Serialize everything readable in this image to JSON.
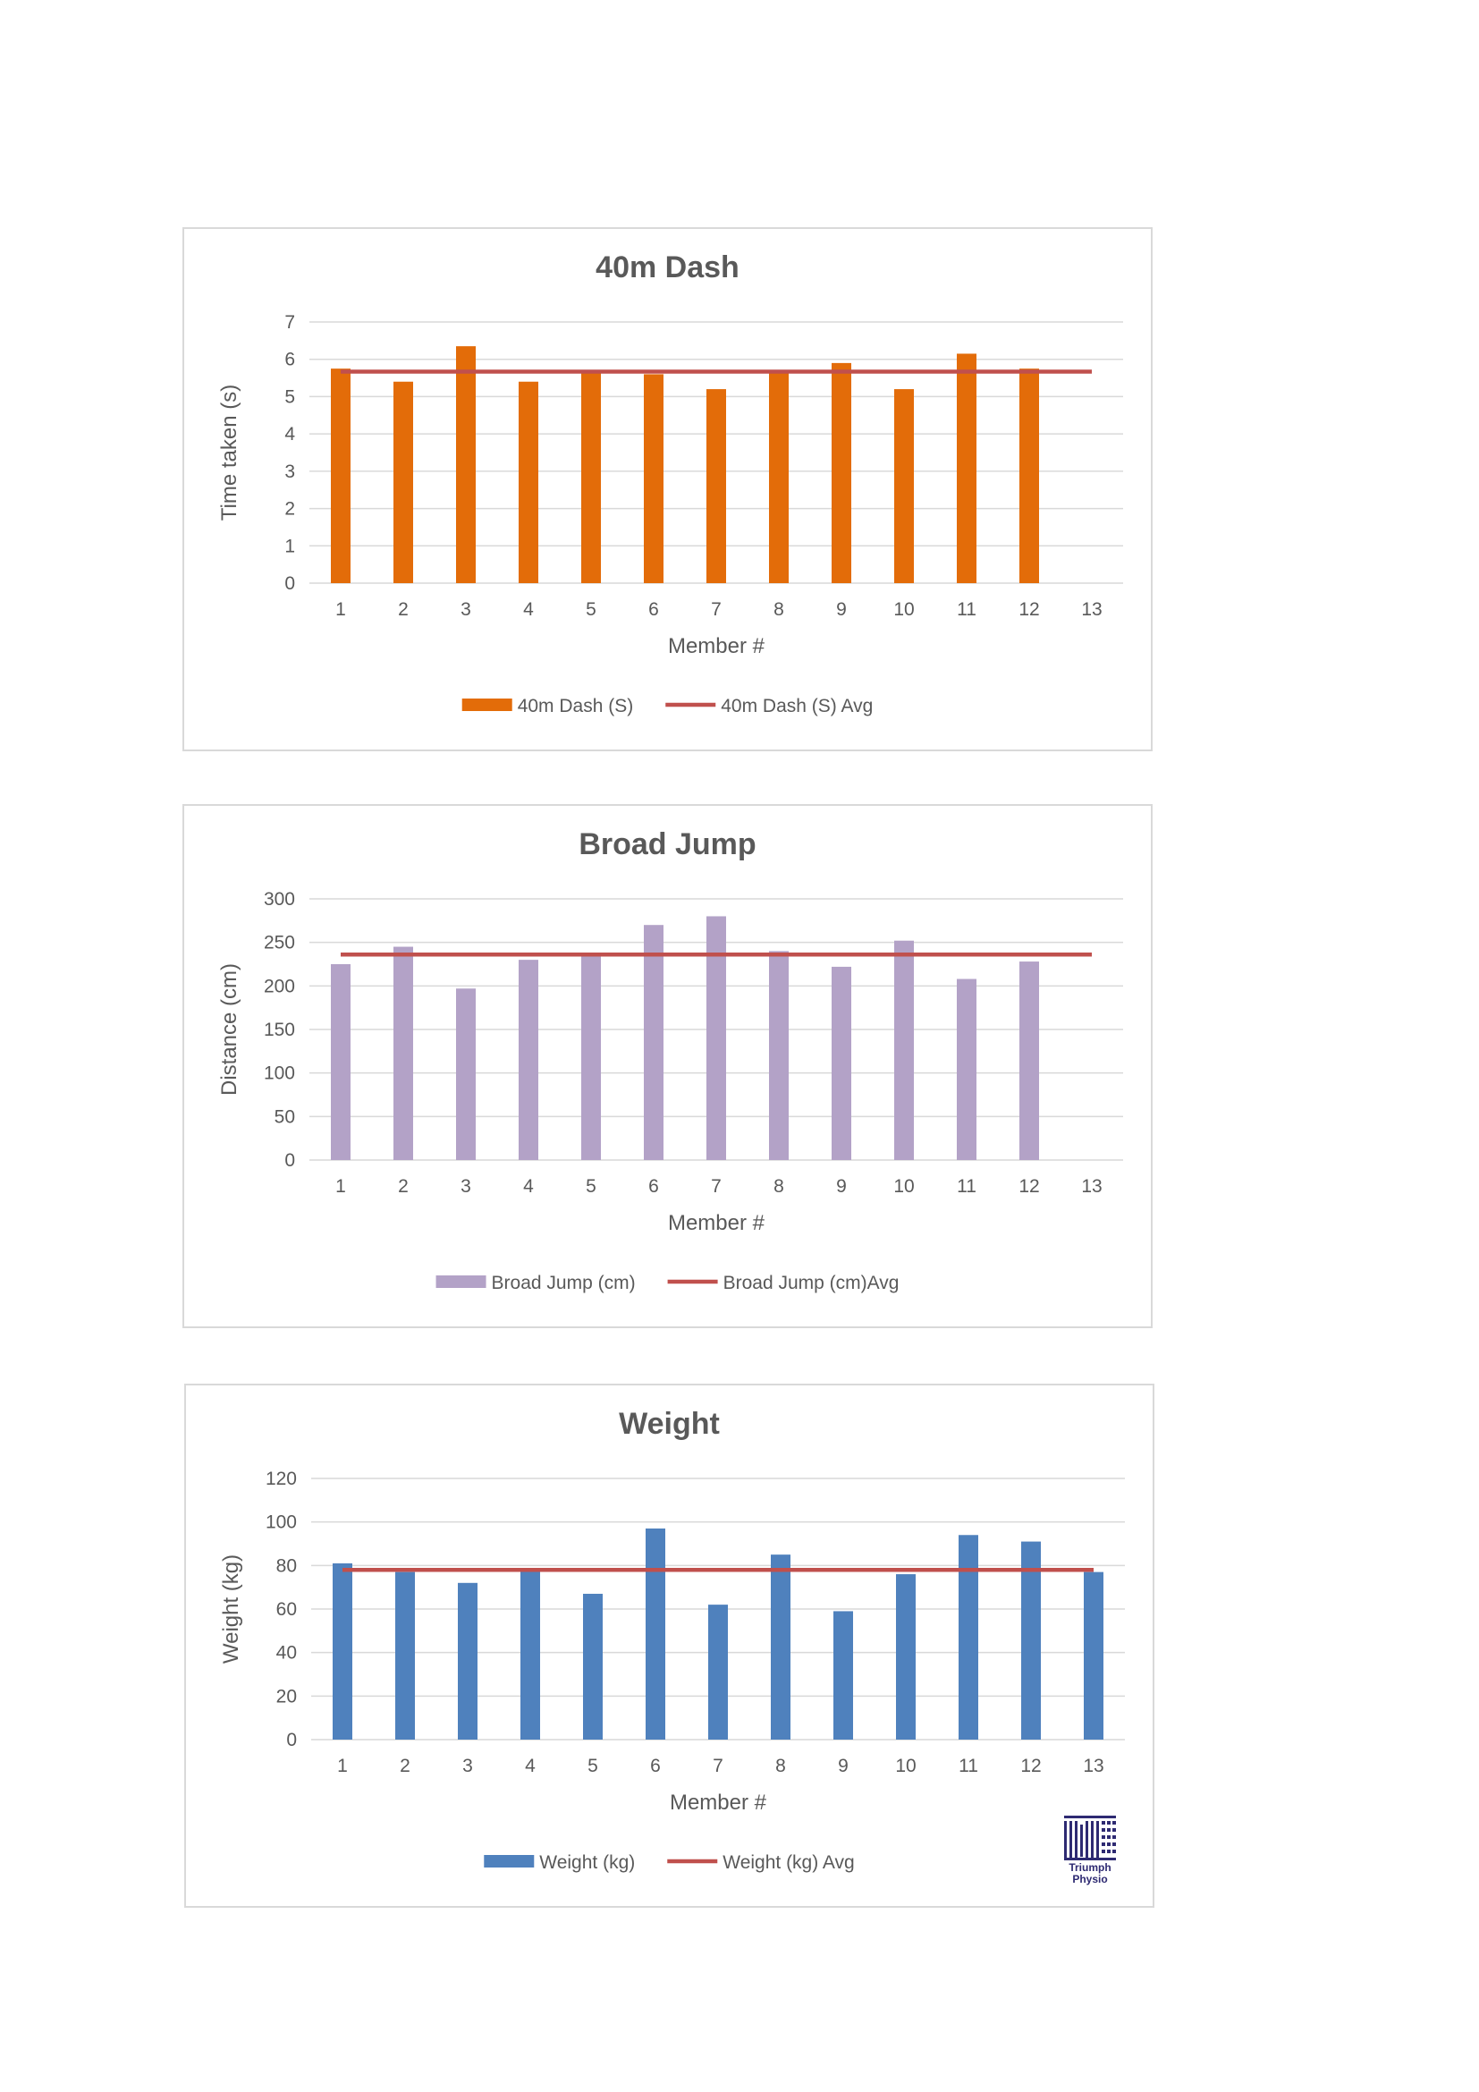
{
  "chart_data": [
    {
      "type": "bar",
      "title": "40m Dash",
      "xlabel": "Member #",
      "ylabel": "Time taken (s)",
      "categories": [
        "1",
        "2",
        "3",
        "4",
        "5",
        "6",
        "7",
        "8",
        "9",
        "10",
        "11",
        "12",
        "13"
      ],
      "ylim": [
        0,
        7
      ],
      "yticks": [
        0,
        1,
        2,
        3,
        4,
        5,
        6,
        7
      ],
      "grid": true,
      "legend_position": "bottom",
      "series": [
        {
          "name": "40m Dash (S)",
          "type": "bar",
          "color": "#e36c09",
          "values": [
            5.75,
            5.4,
            6.35,
            5.4,
            5.7,
            5.6,
            5.2,
            5.65,
            5.9,
            5.2,
            6.15,
            5.75,
            null
          ]
        },
        {
          "name": "40m Dash (S) Avg",
          "type": "line",
          "color": "#c0504d",
          "value": 5.67
        }
      ]
    },
    {
      "type": "bar",
      "title": "Broad Jump",
      "xlabel": "Member #",
      "ylabel": "Distance (cm)",
      "categories": [
        "1",
        "2",
        "3",
        "4",
        "5",
        "6",
        "7",
        "8",
        "9",
        "10",
        "11",
        "12",
        "13"
      ],
      "ylim": [
        0,
        300
      ],
      "yticks": [
        0,
        50,
        100,
        150,
        200,
        250,
        300
      ],
      "grid": true,
      "legend_position": "bottom",
      "series": [
        {
          "name": "Broad Jump (cm)",
          "type": "bar",
          "color": "#b3a2c7",
          "values": [
            225,
            245,
            197,
            230,
            238,
            270,
            280,
            240,
            222,
            252,
            208,
            228,
            null
          ]
        },
        {
          "name": "Broad Jump (cm)Avg",
          "type": "line",
          "color": "#c0504d",
          "value": 236
        }
      ]
    },
    {
      "type": "bar",
      "title": "Weight",
      "xlabel": "Member #",
      "ylabel": "Weight (kg)",
      "categories": [
        "1",
        "2",
        "3",
        "4",
        "5",
        "6",
        "7",
        "8",
        "9",
        "10",
        "11",
        "12",
        "13"
      ],
      "ylim": [
        0,
        120
      ],
      "yticks": [
        0,
        20,
        40,
        60,
        80,
        100,
        120
      ],
      "grid": true,
      "legend_position": "bottom",
      "series": [
        {
          "name": "Weight (kg)",
          "type": "bar",
          "color": "#4f81bd",
          "values": [
            81,
            77,
            72,
            78,
            67,
            97,
            62,
            85,
            59,
            76,
            94,
            91,
            77
          ]
        },
        {
          "name": "Weight (kg) Avg",
          "type": "line",
          "color": "#c0504d",
          "value": 78
        }
      ]
    }
  ],
  "logo": {
    "line1": "Triumph",
    "line2": "Physio",
    "color": "#2e2a72"
  }
}
